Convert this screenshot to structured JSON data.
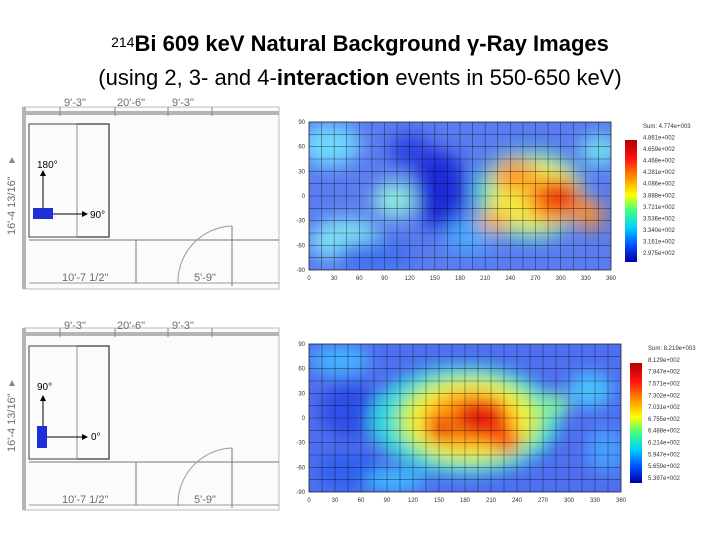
{
  "title": {
    "line1_sup": "214",
    "line1_rest": "Bi 609 keV Natural Background γ-Ray Images",
    "line2_prefix": "(using 2, 3- and 4-",
    "line2_bold": "interaction",
    "line2_suffix": " events in 550-650 keV)"
  },
  "floorplans": [
    {
      "dims": {
        "top_left": "9'-3\"",
        "top_mid": "20'-6\"",
        "top_right": "9'-3\"",
        "left": "16'-4 13/16\"",
        "bottom_left": "10'-7 1/2\"",
        "bottom_right": "5'-9\""
      },
      "angle_up": "180°",
      "angle_right": "90°"
    },
    {
      "dims": {
        "top_left": "9'-3\"",
        "top_mid": "20'-6\"",
        "top_right": "9'-3\"",
        "left": "16'-4 13/16\"",
        "bottom_left": "10'-7 1/2\"",
        "bottom_right": "5'-9\""
      },
      "angle_up": "90°",
      "angle_right": "0°"
    }
  ],
  "maps": [
    {
      "x_ticks": [
        "0",
        "30",
        "60",
        "90",
        "120",
        "150",
        "180",
        "210",
        "240",
        "270",
        "300",
        "330",
        "360"
      ],
      "y_ticks": [
        "90",
        "60",
        "30",
        "0",
        "-30",
        "-60",
        "-90"
      ],
      "legend": [
        "Sum: 4.774e+003",
        "4.861e+002",
        "4.659e+002",
        "4.468e+002",
        "4.281e+002",
        "4.086e+002",
        "3.888e+002",
        "3.721e+002",
        "3.536e+002",
        "3.340e+002",
        "3.161e+002",
        "2.975e+002"
      ]
    },
    {
      "x_ticks": [
        "0",
        "30",
        "60",
        "90",
        "120",
        "150",
        "180",
        "210",
        "240",
        "270",
        "300",
        "330",
        "360"
      ],
      "y_ticks": [
        "90",
        "60",
        "30",
        "0",
        "-30",
        "-60",
        "-90"
      ],
      "legend": [
        "Sum: 8.219e+003",
        "8.129e+002",
        "7.847e+002",
        "7.571e+002",
        "7.302e+002",
        "7.031e+002",
        "6.755e+002",
        "6.488e+002",
        "6.214e+002",
        "5.947e+002",
        "5.659e+002",
        "5.397e+002"
      ]
    }
  ]
}
